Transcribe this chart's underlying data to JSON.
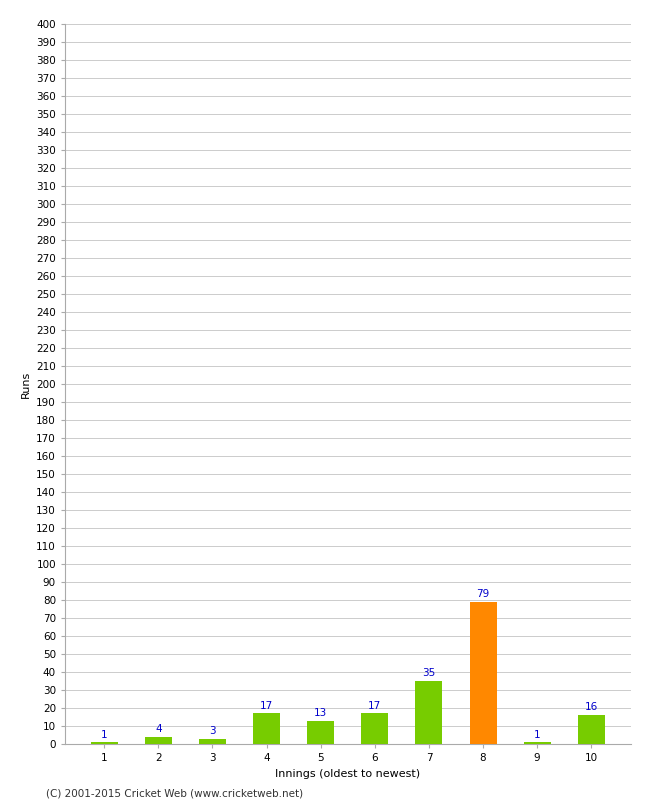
{
  "categories": [
    "1",
    "2",
    "3",
    "4",
    "5",
    "6",
    "7",
    "8",
    "9",
    "10"
  ],
  "values": [
    1,
    4,
    3,
    17,
    13,
    17,
    35,
    79,
    1,
    16
  ],
  "bar_colors": [
    "#77cc00",
    "#77cc00",
    "#77cc00",
    "#77cc00",
    "#77cc00",
    "#77cc00",
    "#77cc00",
    "#ff8800",
    "#77cc00",
    "#77cc00"
  ],
  "xlabel": "Innings (oldest to newest)",
  "ylabel": "Runs",
  "ylim": [
    0,
    400
  ],
  "ytick_step": 10,
  "label_color": "#0000cc",
  "grid_color": "#cccccc",
  "background_color": "#ffffff",
  "footer": "(C) 2001-2015 Cricket Web (www.cricketweb.net)",
  "bar_width": 0.5,
  "label_fontsize": 7.5,
  "tick_fontsize": 7.5,
  "axis_label_fontsize": 8,
  "footer_fontsize": 7.5
}
